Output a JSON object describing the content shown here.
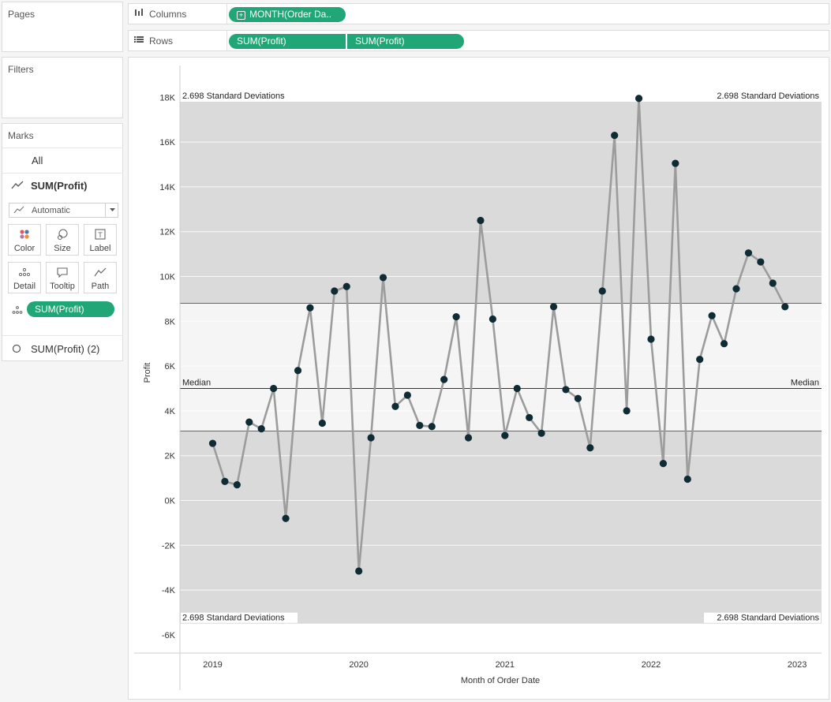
{
  "pages": {
    "title": "Pages"
  },
  "filters": {
    "title": "Filters"
  },
  "marks": {
    "title": "Marks",
    "all_label": "All",
    "layer1_label": "SUM(Profit)",
    "mark_type": "Automatic",
    "buttons": {
      "color": "Color",
      "size": "Size",
      "label": "Label",
      "detail": "Detail",
      "tooltip": "Tooltip",
      "path": "Path"
    },
    "detail_pill": "SUM(Profit)",
    "layer2_label": "SUM(Profit) (2)"
  },
  "shelves": {
    "columns_label": "Columns",
    "columns_pill": "MONTH(Order Da..",
    "rows_label": "Rows",
    "rows_pills": [
      "SUM(Profit)",
      "SUM(Profit)"
    ]
  },
  "colors": {
    "pill": "#21a677",
    "line": "#9c9c9c",
    "point": "#0f2c35",
    "band_outer": "#dadada",
    "band_inner": "#f5f5f5"
  },
  "chart_data": {
    "type": "line",
    "xlabel": "Month of Order Date",
    "ylabel": "Profit",
    "x_ticks": [
      "2019",
      "2020",
      "2021",
      "2022",
      "2023"
    ],
    "y_ticks": [
      "18K",
      "16K",
      "14K",
      "12K",
      "10K",
      "8K",
      "6K",
      "4K",
      "2K",
      "0K",
      "-2K",
      "-4K",
      "-6K"
    ],
    "ylim": [
      -6000,
      19000
    ],
    "grid": true,
    "reference_lines": {
      "median": 5000,
      "median_label": "Median",
      "band_label": "2.698 Standard Deviations",
      "outer_band": [
        -5500,
        17800
      ],
      "inner_band": [
        3100,
        8800
      ]
    },
    "series": [
      {
        "values": [
          2550,
          850,
          700,
          3500,
          3200,
          5000,
          -800,
          5800,
          8600,
          3450,
          9350,
          9550,
          -3150,
          2800,
          9950,
          4200,
          4700,
          3350,
          3300,
          5400,
          8200,
          2800,
          12500,
          8100,
          2900,
          5000,
          3700,
          3000,
          8650,
          4950,
          4550,
          2350,
          9350,
          16300,
          4000,
          17950,
          7200,
          1650,
          15050,
          950,
          6300,
          8250,
          7000,
          9450,
          11050,
          10650,
          9700,
          8650
        ]
      }
    ]
  }
}
